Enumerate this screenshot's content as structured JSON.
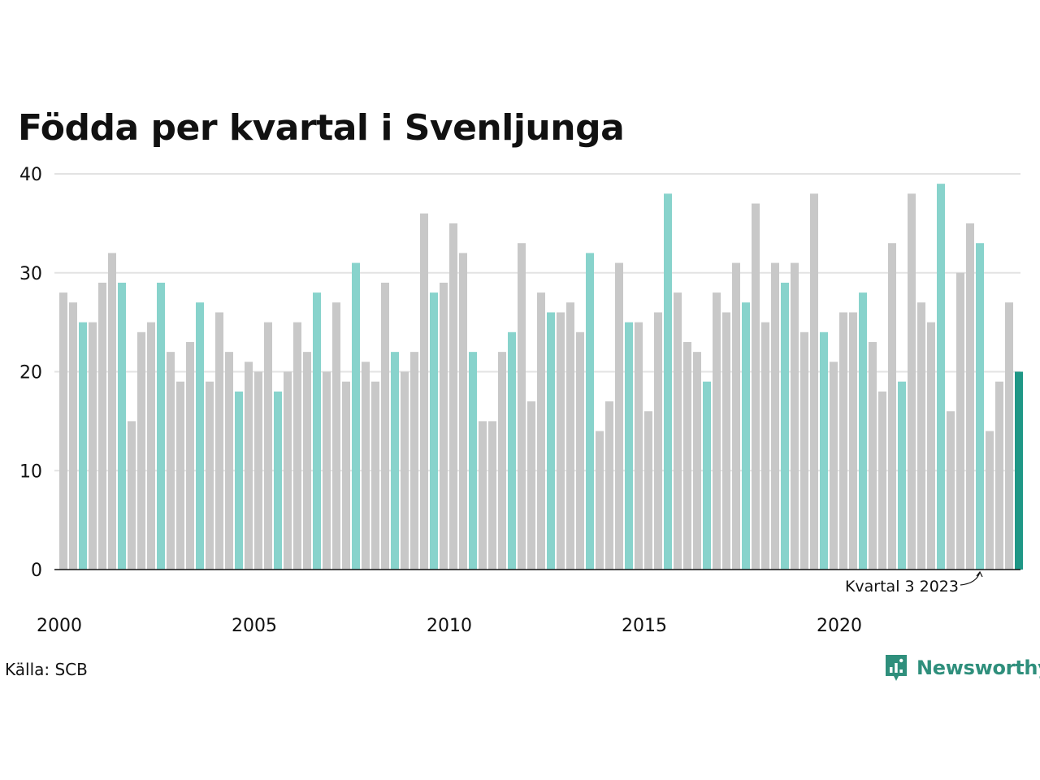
{
  "chart_data": {
    "type": "bar",
    "title": "Födda per kvartal i Svenljunga",
    "xlabel": "",
    "ylabel": "",
    "ylim": [
      0,
      40
    ],
    "yticks": [
      0,
      10,
      20,
      30,
      40
    ],
    "x_tick_labels": [
      "2000",
      "2005",
      "2010",
      "2015",
      "2020"
    ],
    "start_year": 2000,
    "grid": true,
    "colors": {
      "default": "#c8c8c8",
      "same_quarter": "#88d3cc",
      "latest": "#1f9786"
    },
    "annotation": "Kvartal 3 2023",
    "values": [
      28,
      27,
      25,
      25,
      29,
      32,
      29,
      15,
      24,
      25,
      29,
      22,
      19,
      23,
      27,
      19,
      26,
      22,
      18,
      21,
      20,
      25,
      18,
      20,
      25,
      22,
      28,
      20,
      27,
      19,
      31,
      21,
      19,
      29,
      22,
      20,
      22,
      36,
      28,
      29,
      35,
      32,
      22,
      15,
      15,
      22,
      24,
      33,
      17,
      28,
      26,
      26,
      27,
      24,
      32,
      14,
      17,
      31,
      25,
      25,
      16,
      26,
      38,
      28,
      23,
      22,
      19,
      28,
      26,
      31,
      27,
      37,
      25,
      31,
      29,
      31,
      24,
      38,
      24,
      21,
      26,
      26,
      28,
      23,
      18,
      33,
      19,
      38,
      27,
      25,
      39,
      16,
      30,
      35,
      33,
      14,
      19,
      27,
      20
    ]
  },
  "footer": {
    "source": "Källa: SCB",
    "logo_text": "Newsworthy",
    "logo_icon": "newsworthy-logo-icon"
  }
}
